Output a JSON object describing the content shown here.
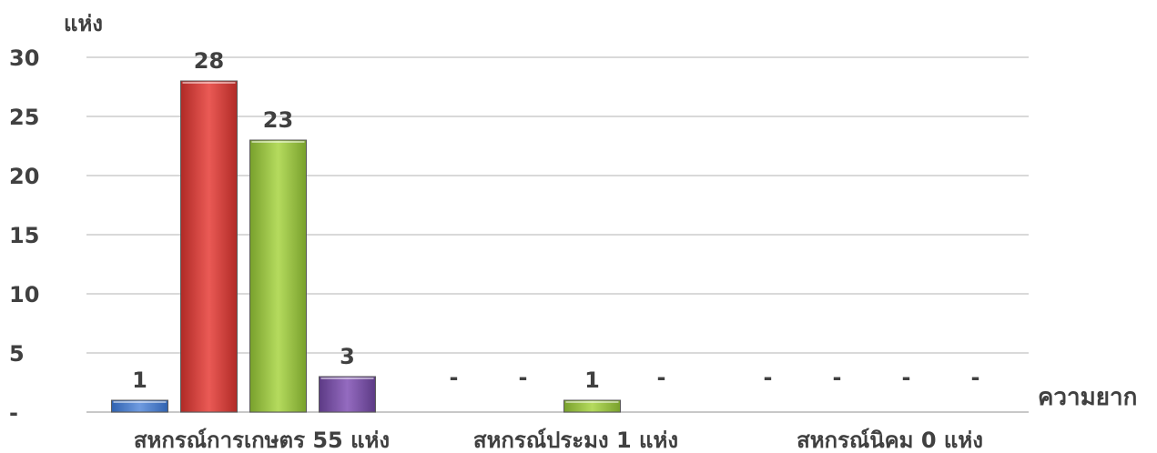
{
  "chart_data": {
    "type": "bar",
    "ylabel": "แห่ง",
    "xlabel": "ความยาก",
    "ylim": [
      0,
      30
    ],
    "yticks": [
      0,
      5,
      10,
      15,
      20,
      25,
      30
    ],
    "ytick_labels": [
      "-",
      "5",
      "10",
      "15",
      "20",
      "25",
      "30"
    ],
    "zero_label": "-",
    "grid": true,
    "legend": "none",
    "categories": [
      "สหกรณ์การเกษตร 55 แห่ง",
      "สหกรณ์ประมง 1 แห่ง",
      "สหกรณ์นิคม 0 แห่ง"
    ],
    "series": [
      {
        "color": "#4a7fd1",
        "values": [
          1,
          0,
          0
        ]
      },
      {
        "color": "#d9413c",
        "values": [
          28,
          0,
          0
        ]
      },
      {
        "color": "#9ac43f",
        "values": [
          23,
          1,
          0
        ]
      },
      {
        "color": "#7b51a6",
        "values": [
          3,
          0,
          0
        ]
      }
    ]
  }
}
